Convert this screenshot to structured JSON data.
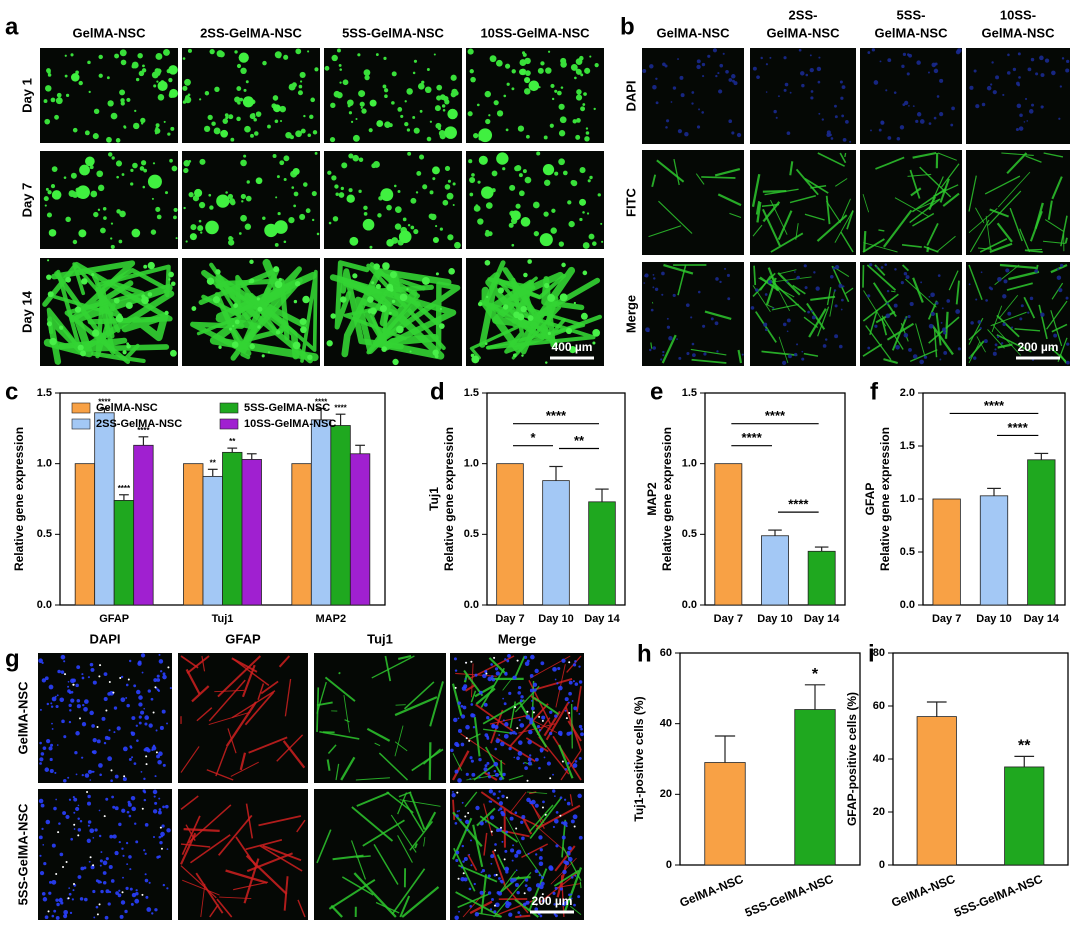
{
  "figure": {
    "a": {
      "letter": "a",
      "columns": [
        [
          "GelMA-NSC"
        ],
        [
          "2SS-GelMA-NSC"
        ],
        [
          "5SS-GelMA-NSC"
        ],
        [
          "10SS-GelMA-NSC"
        ]
      ],
      "rows": [
        "Day 1",
        "Day 7",
        "Day 14"
      ],
      "scale_bar": "400 µm"
    },
    "b": {
      "letter": "b",
      "columns": [
        [
          "GelMA-NSC"
        ],
        [
          "2SS-",
          "GelMA-NSC"
        ],
        [
          "5SS-",
          "GelMA-NSC"
        ],
        [
          "10SS-",
          "GelMA-NSC"
        ]
      ],
      "rows": [
        "DAPI",
        "FITC",
        "Merge"
      ],
      "row_colors": [
        "#1a1aff",
        "#1fa81f",
        "#000000"
      ],
      "scale_bar": "200 µm"
    },
    "g": {
      "letter": "g",
      "columns": [
        [
          "DAPI"
        ],
        [
          "GFAP"
        ],
        [
          "Tuj1"
        ],
        [
          "Merge"
        ]
      ],
      "column_colors": [
        "#1a1aff",
        "#e02020",
        "#1fa81f",
        "#000000"
      ],
      "rows": [
        "GelMA-NSC",
        "5SS-GelMA-NSC"
      ],
      "scale_bar": "200 µm"
    }
  },
  "chart_data": [
    {
      "type": "bar",
      "panel": "c",
      "ylabel": "Relative gene expression",
      "categories": [
        "GFAP",
        "Tuj1",
        "MAP2"
      ],
      "series": [
        {
          "name": "GelMA-NSC",
          "color": "#f8a145",
          "values": [
            1,
            1,
            1
          ]
        },
        {
          "name": "2SS-GelMA-NSC",
          "color": "#a3c8f5",
          "values": [
            1.36,
            0.91,
            1.31
          ],
          "errors": [
            0.03,
            0.05,
            0.08
          ],
          "sig_labels": [
            "****",
            "**",
            "****"
          ]
        },
        {
          "name": "5SS-GelMA-NSC",
          "color": "#1fa81f",
          "values": [
            0.74,
            1.08,
            1.27
          ],
          "errors": [
            0.04,
            0.03,
            0.08
          ],
          "sig_labels": [
            "****",
            "**",
            "****"
          ]
        },
        {
          "name": "10SS-GelMA-NSC",
          "color": "#a020d0",
          "values": [
            1.13,
            1.03,
            1.07
          ],
          "errors": [
            0.06,
            0.04,
            0.06
          ],
          "sig_labels": [
            "****",
            null,
            null
          ]
        }
      ],
      "ylim": [
        0,
        1.5
      ],
      "yticks": [
        {
          "value": 0,
          "label": "0.0"
        },
        0.5,
        {
          "value": 1,
          "label": "1.0"
        },
        1.5
      ],
      "legend": "top"
    },
    {
      "type": "bar",
      "panel": "d",
      "ylabel": [
        "Tuj1",
        "Relative gene expression"
      ],
      "categories": [
        "Day 7",
        "Day 10",
        "Day 14"
      ],
      "values": [
        1,
        0.88,
        0.73
      ],
      "errors": [
        null,
        0.1,
        0.09
      ],
      "colors": [
        "#f8a145",
        "#a3c8f5",
        "#1fa81f"
      ],
      "ylim": [
        0,
        1.5
      ],
      "yticks": [
        {
          "value": 0,
          "label": "0.0"
        },
        0.5,
        {
          "value": 1,
          "label": "1.0"
        },
        1.5
      ],
      "comparisons": [
        {
          "groups": [
            "Day 7",
            "Day 14"
          ],
          "label": "****"
        },
        {
          "groups": [
            "Day 7",
            "Day 10"
          ],
          "label": "*"
        },
        {
          "groups": [
            "Day 10",
            "Day 14"
          ],
          "label": "**"
        }
      ]
    },
    {
      "type": "bar",
      "panel": "e",
      "ylabel": [
        "MAP2",
        "Relative gene expression"
      ],
      "categories": [
        "Day 7",
        "Day 10",
        "Day 14"
      ],
      "values": [
        1,
        0.49,
        0.38
      ],
      "errors": [
        null,
        0.04,
        0.03
      ],
      "colors": [
        "#f8a145",
        "#a3c8f5",
        "#1fa81f"
      ],
      "ylim": [
        0,
        1.5
      ],
      "yticks": [
        {
          "value": 0,
          "label": "0.0"
        },
        0.5,
        {
          "value": 1,
          "label": "1.0"
        },
        1.5
      ],
      "comparisons": [
        {
          "groups": [
            "Day 7",
            "Day 14"
          ],
          "label": "****"
        },
        {
          "groups": [
            "Day 7",
            "Day 10"
          ],
          "label": "****"
        },
        {
          "groups": [
            "Day 10",
            "Day 14"
          ],
          "label": "****"
        }
      ]
    },
    {
      "type": "bar",
      "panel": "f",
      "ylabel": [
        "GFAP",
        "Relative gene expression"
      ],
      "categories": [
        "Day 7",
        "Day 10",
        "Day 14"
      ],
      "values": [
        1,
        1.03,
        1.37
      ],
      "errors": [
        null,
        0.07,
        0.06
      ],
      "colors": [
        "#f8a145",
        "#a3c8f5",
        "#1fa81f"
      ],
      "ylim": [
        0,
        2
      ],
      "yticks": [
        {
          "value": 0,
          "label": "0.0"
        },
        0.5,
        {
          "value": 1,
          "label": "1.0"
        },
        1.5,
        {
          "value": 2,
          "label": "2.0"
        }
      ],
      "comparisons": [
        {
          "groups": [
            "Day 7",
            "Day 14"
          ],
          "label": "****"
        },
        {
          "groups": [
            "Day 10",
            "Day 14"
          ],
          "label": "****"
        }
      ]
    },
    {
      "type": "bar",
      "panel": "h",
      "ylabel": "Tuj1-positive cells (%)",
      "categories": [
        "GelMA-NSC",
        "5SS-GelMA-NSC"
      ],
      "values": [
        29,
        44
      ],
      "errors": [
        7.5,
        7
      ],
      "sig_labels": [
        null,
        "*"
      ],
      "colors": [
        "#f8a145",
        "#1fa81f"
      ],
      "ylim": [
        0,
        60
      ],
      "yticks": [
        0,
        20,
        40,
        60
      ],
      "x_labels_rotated": true
    },
    {
      "type": "bar",
      "panel": "i",
      "ylabel": "GFAP-positive cells (%)",
      "categories": [
        "GelMA-NSC",
        "5SS-GelMA-NSC"
      ],
      "values": [
        56,
        37
      ],
      "errors": [
        5.5,
        4
      ],
      "sig_labels": [
        null,
        "**"
      ],
      "colors": [
        "#f8a145",
        "#1fa81f"
      ],
      "ylim": [
        0,
        80
      ],
      "yticks": [
        0,
        20,
        40,
        60,
        80
      ],
      "x_labels_rotated": true
    }
  ]
}
